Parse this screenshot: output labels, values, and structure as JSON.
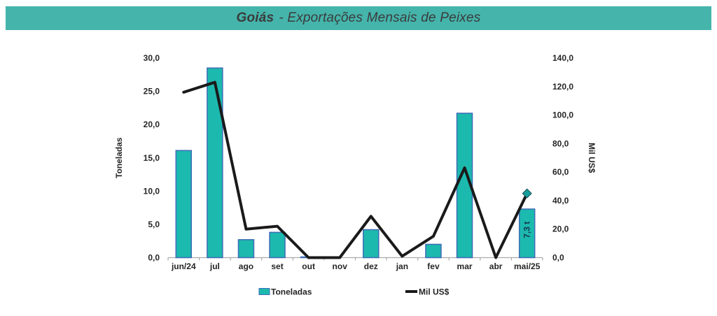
{
  "header": {
    "title_bold": "Goiás",
    "title_rest": "- Exportações Mensais de Peixes",
    "bg_color": "#45B4AB",
    "text_color": "#3B3B3B"
  },
  "chart_data": {
    "type": "bar",
    "combo": "bar+line dual axis",
    "title": "Goiás - Exportações Mensais de Peixes",
    "categories": [
      "jun/24",
      "jul",
      "ago",
      "set",
      "out",
      "nov",
      "dez",
      "jan",
      "fev",
      "mar",
      "abr",
      "mai/25"
    ],
    "series": [
      {
        "name": "Toneladas",
        "type": "bar",
        "axis": "left",
        "values": [
          16.1,
          28.5,
          2.7,
          3.8,
          0.1,
          0,
          4.2,
          0,
          2.0,
          21.7,
          0,
          7.3
        ],
        "color": "#1CB9AE",
        "border_color": "#3E6CB5"
      },
      {
        "name": "Mil US$",
        "type": "line",
        "axis": "right",
        "values": [
          116,
          123,
          20,
          22,
          0,
          0,
          29,
          1,
          15,
          63,
          0,
          45
        ],
        "color": "#1A1A1A"
      }
    ],
    "left_axis": {
      "title": "Toneladas",
      "min": 0,
      "max": 30,
      "step": 5,
      "tick_labels": [
        "0,0",
        "5,0",
        "10,0",
        "15,0",
        "20,0",
        "25,0",
        "30,0"
      ]
    },
    "right_axis": {
      "title": "Mil US$",
      "min": 0,
      "max": 140,
      "step": 20,
      "tick_labels": [
        "0,0",
        "20,0",
        "40,0",
        "60,0",
        "80,0",
        "100,0",
        "120,0",
        "140,0"
      ]
    },
    "bar_label": {
      "text": "7,3 t",
      "category": "mai/25"
    },
    "last_point_marker": {
      "shape": "diamond",
      "fill": "#189E9B",
      "stroke": "#0F4F55"
    },
    "axis_color": "#ABABAB",
    "grid": "off",
    "legend_position": "bottom",
    "legend": [
      {
        "label": "Toneladas",
        "swatch": "bar"
      },
      {
        "label": "Mil US$",
        "swatch": "line"
      }
    ]
  }
}
